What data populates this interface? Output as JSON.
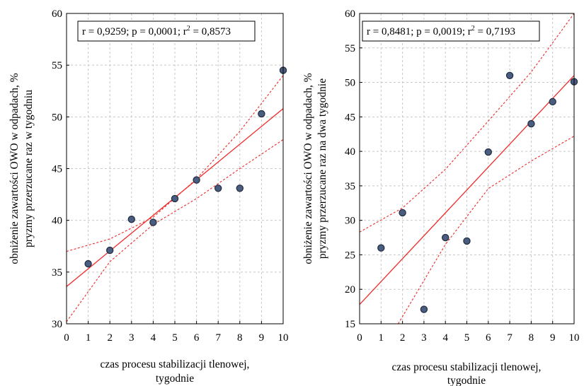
{
  "chart_data": [
    {
      "type": "scatter",
      "stat_text": {
        "prefix": "r = 0,9259; p = 0,0001; r",
        "sup": "2",
        "suffix": " = 0,8573"
      },
      "ylabel": [
        "obniżenie zawartości OWO w odpadach, %",
        "pryzmy przerzucane raz w tygodniu"
      ],
      "xlabel": [
        "czas procesu stabilizacji tlenowej,",
        "tygodnie"
      ],
      "xlim": [
        0,
        10
      ],
      "ylim": [
        30,
        60
      ],
      "xticks": [
        "0",
        "1",
        "2",
        "3",
        "4",
        "5",
        "6",
        "7",
        "8",
        "9",
        "10"
      ],
      "yticks": [
        "30",
        "35",
        "40",
        "45",
        "50",
        "55",
        "60"
      ],
      "grid": true,
      "x": [
        1,
        2,
        3,
        4,
        5,
        6,
        7,
        8,
        9,
        10
      ],
      "y": [
        35.8,
        37.1,
        40.1,
        39.8,
        42.1,
        43.9,
        43.1,
        43.1,
        50.3,
        54.5
      ],
      "fit": {
        "intercept": 33.6,
        "slope": 1.72
      },
      "ci_upper": [
        [
          0,
          37.0
        ],
        [
          2,
          38.2
        ],
        [
          4,
          40.3
        ],
        [
          6,
          44.0
        ],
        [
          8,
          48.6
        ],
        [
          10,
          54.0
        ]
      ],
      "ci_lower": [
        [
          0,
          30.2
        ],
        [
          2,
          36.0
        ],
        [
          4,
          39.6
        ],
        [
          6,
          42.1
        ],
        [
          8,
          45.0
        ],
        [
          10,
          47.8
        ]
      ]
    },
    {
      "type": "scatter",
      "stat_text": {
        "prefix": "r = 0,8481; p = 0,0019; r",
        "sup": "2",
        "suffix": " = 0,7193"
      },
      "ylabel": [
        "obniżenie zawartości OWO w odpadach, %",
        "pryzmy przerzucane raz na dwa tygodnie"
      ],
      "xlabel": [
        "czas procesu stabilizacji tlenowej,",
        "tygodnie"
      ],
      "xlim": [
        0,
        10
      ],
      "ylim": [
        15,
        60
      ],
      "xticks": [
        "0",
        "1",
        "2",
        "3",
        "4",
        "5",
        "6",
        "7",
        "8",
        "9",
        "10"
      ],
      "yticks": [
        "15",
        "20",
        "25",
        "30",
        "35",
        "40",
        "45",
        "50",
        "55",
        "60"
      ],
      "grid": true,
      "x": [
        1,
        2,
        3,
        4,
        5,
        6,
        7,
        8,
        9,
        10
      ],
      "y": [
        26.0,
        31.1,
        17.1,
        27.5,
        27.0,
        39.9,
        51.0,
        44.0,
        47.2,
        50.1
      ],
      "fit": {
        "intercept": 17.8,
        "slope": 3.32
      },
      "ci_upper": [
        [
          0,
          28.3
        ],
        [
          2,
          31.8
        ],
        [
          4,
          37.4
        ],
        [
          6,
          44.4
        ],
        [
          8,
          51.5
        ],
        [
          10,
          60.0
        ]
      ],
      "ci_lower": [
        [
          1.8,
          15.0
        ],
        [
          4,
          26.5
        ],
        [
          6,
          34.6
        ],
        [
          8,
          38.6
        ],
        [
          10,
          42.2
        ]
      ]
    }
  ]
}
